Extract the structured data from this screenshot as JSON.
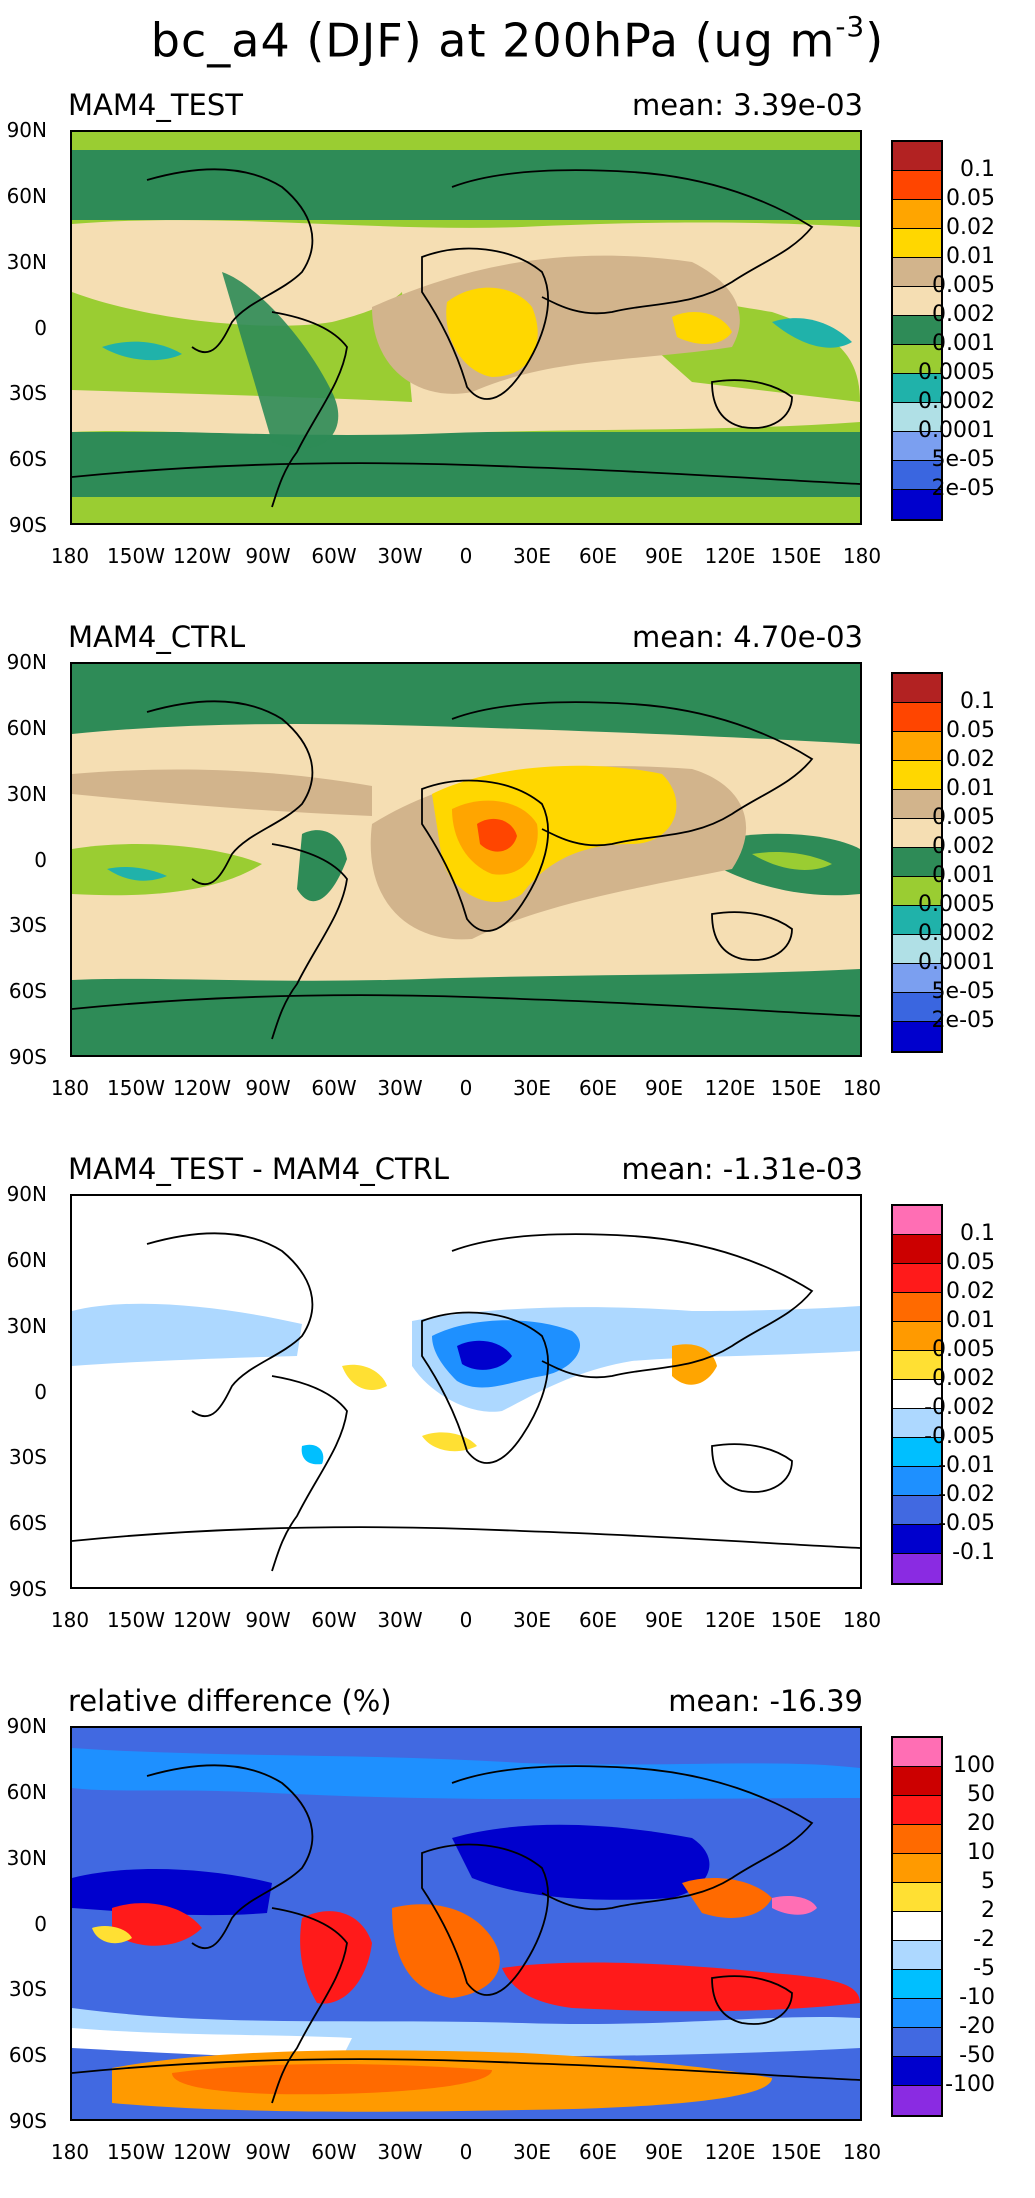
{
  "figure_title": "bc_a4 (DJF) at 200hPa (ug m",
  "figure_title_sup": "-3",
  "lat_labels": [
    "90N",
    "60N",
    "30N",
    "0",
    "30S",
    "60S",
    "90S"
  ],
  "lon_labels": [
    "180",
    "150W",
    "120W",
    "90W",
    "60W",
    "30W",
    "0",
    "30E",
    "60E",
    "90E",
    "120E",
    "150E",
    "180"
  ],
  "panels": [
    {
      "title": "MAM4_TEST",
      "mean": "mean: 3.39e-03",
      "colorbar": {
        "labels": [
          "0.1",
          "0.05",
          "0.02",
          "0.01",
          "0.005",
          "0.002",
          "0.001",
          "0.0005",
          "0.0002",
          "0.0001",
          "5e-05",
          "2e-05"
        ],
        "colors": [
          "#B22222",
          "#FF4500",
          "#FFA500",
          "#FFD700",
          "#D2B48C",
          "#F5DEB3",
          "#2E8B57",
          "#9ACD32",
          "#20B2AA",
          "#B0E0E6",
          "#7B9FF0",
          "#3A66E0",
          "#0000CD"
        ]
      }
    },
    {
      "title": "MAM4_CTRL",
      "mean": "mean: 4.70e-03",
      "colorbar": {
        "labels": [
          "0.1",
          "0.05",
          "0.02",
          "0.01",
          "0.005",
          "0.002",
          "0.001",
          "0.0005",
          "0.0002",
          "0.0001",
          "5e-05",
          "2e-05"
        ],
        "colors": [
          "#B22222",
          "#FF4500",
          "#FFA500",
          "#FFD700",
          "#D2B48C",
          "#F5DEB3",
          "#2E8B57",
          "#9ACD32",
          "#20B2AA",
          "#B0E0E6",
          "#7B9FF0",
          "#3A66E0",
          "#0000CD"
        ]
      }
    },
    {
      "title": "MAM4_TEST - MAM4_CTRL",
      "mean": "mean: -1.31e-03",
      "colorbar": {
        "labels": [
          "0.1",
          "0.05",
          "0.02",
          "0.01",
          "0.005",
          "0.002",
          "-0.002",
          "-0.005",
          "-0.01",
          "-0.02",
          "-0.05",
          "-0.1"
        ],
        "colors": [
          "#FF6EB4",
          "#CC0000",
          "#FF1A1A",
          "#FF6A00",
          "#FF9A00",
          "#FFE033",
          "#FFFFFF",
          "#ADD8FF",
          "#00BFFF",
          "#1E90FF",
          "#4169E1",
          "#0000CD",
          "#8A2BE2"
        ]
      }
    },
    {
      "title": "relative difference (%)",
      "mean": "mean: -16.39",
      "colorbar": {
        "labels": [
          "100",
          "50",
          "20",
          "10",
          "5",
          "2",
          "-2",
          "-5",
          "-10",
          "-20",
          "-50",
          "-100"
        ],
        "colors": [
          "#FF6EB4",
          "#CC0000",
          "#FF1A1A",
          "#FF6A00",
          "#FF9A00",
          "#FFE033",
          "#FFFFFF",
          "#ADD8FF",
          "#00BFFF",
          "#1E90FF",
          "#4169E1",
          "#0000CD",
          "#8A2BE2"
        ]
      }
    }
  ]
}
